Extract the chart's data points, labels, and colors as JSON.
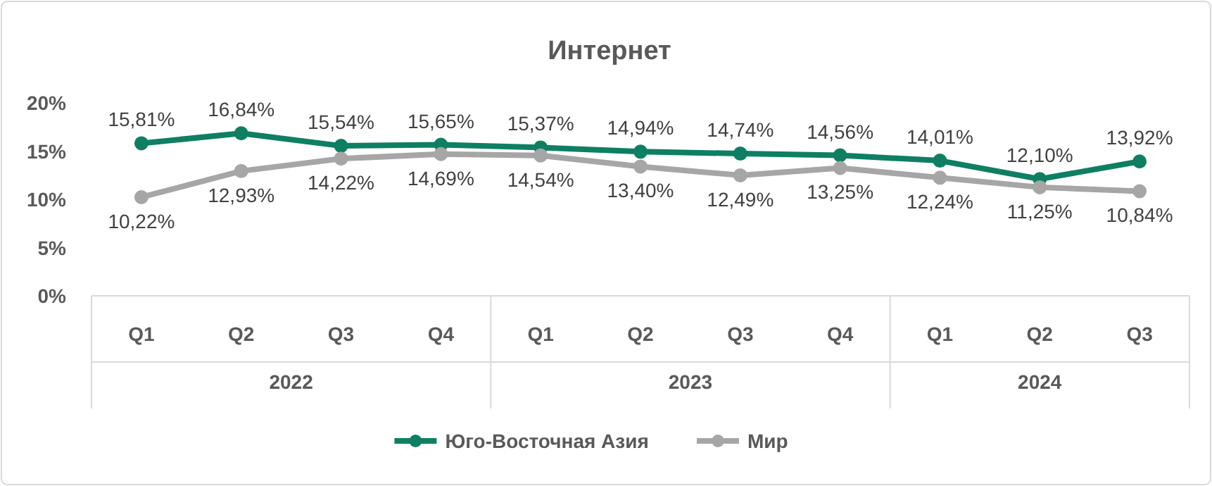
{
  "chart_data": {
    "type": "line",
    "title": "Интернет",
    "categories": [
      "Q1",
      "Q2",
      "Q3",
      "Q4",
      "Q1",
      "Q2",
      "Q3",
      "Q4",
      "Q1",
      "Q2",
      "Q3"
    ],
    "annotations": [
      "2022",
      "2023",
      "2024"
    ],
    "ylim": [
      0,
      20
    ],
    "yticks": [
      {
        "value": 0,
        "label": "0%"
      },
      {
        "value": 5,
        "label": "5%"
      },
      {
        "value": 10,
        "label": "10%"
      },
      {
        "value": 15,
        "label": "15%"
      },
      {
        "value": 20,
        "label": "20%"
      }
    ],
    "grid": false,
    "legend": "bottom",
    "marker": "circle",
    "line_style": "solid",
    "series": [
      {
        "name": "Юго-Восточная Азия",
        "color": "#0e7f62",
        "values": [
          15.81,
          16.84,
          15.54,
          15.65,
          15.37,
          14.94,
          14.74,
          14.56,
          14.01,
          12.1,
          13.92
        ],
        "value_labels": [
          "15,81%",
          "16,84%",
          "15,54%",
          "15,65%",
          "15,37%",
          "14,94%",
          "14,74%",
          "14,56%",
          "14,01%",
          "12,10%",
          "13,92%"
        ]
      },
      {
        "name": "Мир",
        "color": "#a6a6a6",
        "values": [
          10.22,
          12.93,
          14.22,
          14.69,
          14.54,
          13.4,
          12.49,
          13.25,
          12.24,
          11.25,
          10.84
        ],
        "value_labels": [
          "10,22%",
          "12,93%",
          "14,22%",
          "14,69%",
          "14,54%",
          "13,40%",
          "12,49%",
          "13,25%",
          "12,24%",
          "11,25%",
          "10,84%"
        ]
      }
    ]
  }
}
